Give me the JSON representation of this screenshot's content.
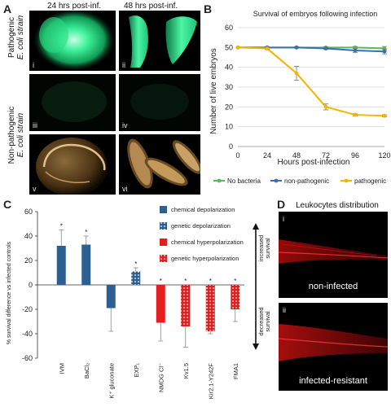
{
  "figure": {
    "panel_letters": {
      "a": "A",
      "b": "B",
      "c": "C",
      "d": "D"
    }
  },
  "panel_a": {
    "headers": [
      "24 hrs post-inf.",
      "48 hrs post-inf."
    ],
    "row_labels": {
      "pathogenic_line1": "Pathogenic",
      "pathogenic_line2": "E. coli strain",
      "nonpathogenic_line1": "Non-pathogenic",
      "nonpathogenic_line2": "E. coli strain"
    },
    "tiles": [
      "i",
      "ii",
      "iii",
      "iv",
      "v",
      "vi"
    ],
    "colors": {
      "fluorescence": "#22e58a",
      "brightfield": "#c49a5a"
    }
  },
  "panel_d": {
    "title": "Leukocytes distribution",
    "tiles": [
      {
        "numeral": "i",
        "caption": "non-infected"
      },
      {
        "numeral": "ii",
        "caption": "infected-resistant"
      }
    ],
    "colors": {
      "fluorescence": "#e01010"
    }
  },
  "chart_data": [
    {
      "panel": "B",
      "type": "line",
      "title": "Survival of embryos following infection",
      "xlabel": "Hours post-infection",
      "ylabel": "Number of live embryos",
      "x": [
        0,
        24,
        48,
        72,
        96,
        120
      ],
      "x_ticks": [
        "0",
        "24",
        "48",
        "72",
        "96",
        "120"
      ],
      "y_ticks": [
        "0",
        "10",
        "20",
        "30",
        "40",
        "50",
        "60"
      ],
      "ylim": [
        0,
        60
      ],
      "grid": true,
      "legend_position": "bottom",
      "series": [
        {
          "name": "No bacteria",
          "color": "#5cb85c",
          "values": [
            50,
            50,
            50,
            50,
            50,
            49.5
          ],
          "errors": [
            0,
            0.3,
            0.3,
            0.3,
            0.5,
            1
          ]
        },
        {
          "name": "non-pathogenic",
          "color": "#3a6fb8",
          "values": [
            50,
            50,
            50,
            49.5,
            48.5,
            48
          ],
          "errors": [
            0,
            0.3,
            0.4,
            0.5,
            1,
            1.2
          ]
        },
        {
          "name": "pathogenic",
          "color": "#f5b400",
          "values": [
            50,
            49.5,
            37,
            20,
            16,
            15.5
          ],
          "errors": [
            0,
            0.5,
            3.5,
            1.5,
            0.5,
            0.5
          ]
        }
      ]
    },
    {
      "panel": "C",
      "type": "bar",
      "ylabel": "% survival difference vs infected controls",
      "y_ticks": [
        "-60",
        "-40",
        "-20",
        "0",
        "20",
        "40",
        "60"
      ],
      "ylim": [
        -60,
        60
      ],
      "categories": [
        "IVM",
        "BaCl₂",
        "K⁺ gluconate",
        "EXP₁",
        "NMDG Cl⁻",
        "Kv1.5",
        "Kir2.1-Y242F",
        "FMA1"
      ],
      "values": [
        32,
        33,
        -19,
        11,
        -31,
        -34,
        -38,
        -20
      ],
      "errors": [
        13,
        7,
        19,
        3,
        15,
        17,
        2,
        10
      ],
      "classes": [
        "chemical depolarization",
        "chemical depolarization",
        "chemical depolarization",
        "genetic depolarization",
        "chemical hyperpolarization",
        "genetic hyperpolarization",
        "genetic hyperpolarization",
        "genetic hyperpolarization"
      ],
      "significance": [
        "*",
        "*",
        "",
        "*",
        "*",
        "*",
        "*",
        "*"
      ],
      "legend": [
        {
          "name": "chemical depolarization",
          "color": "#2e5f93",
          "pattern": "solid"
        },
        {
          "name": "genetic depolarization",
          "color": "#2e5f93",
          "pattern": "dotted"
        },
        {
          "name": "chemical hyperpolarization",
          "color": "#e41e1e",
          "pattern": "solid"
        },
        {
          "name": "genetic hyperpolarization",
          "color": "#e41e1e",
          "pattern": "dotted"
        }
      ],
      "right_labels": {
        "up": "increased survival",
        "down": "decreased survival"
      }
    }
  ]
}
